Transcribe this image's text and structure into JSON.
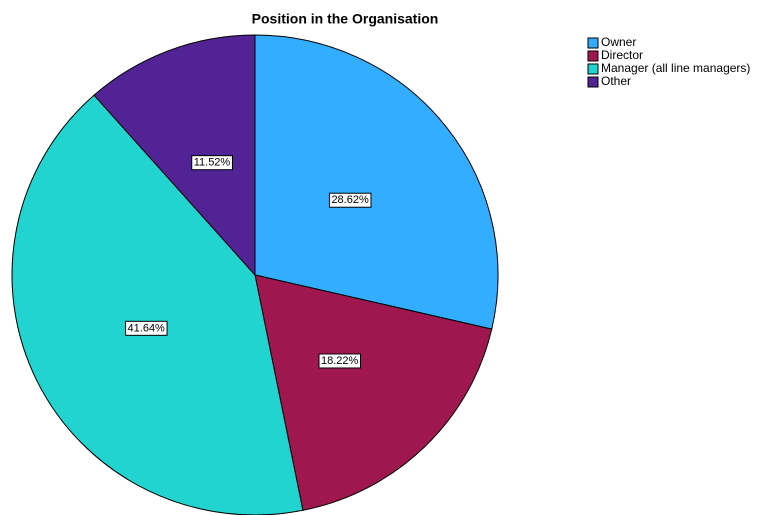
{
  "chart_data": {
    "type": "pie",
    "title": "Position in the Organisation",
    "categories": [
      "Owner",
      "Director",
      "Manager (all line managers)",
      "Other"
    ],
    "values": [
      28.62,
      18.22,
      41.64,
      11.52
    ],
    "value_labels": [
      "28.62%",
      "18.22%",
      "41.64%",
      "11.52%"
    ],
    "colors": [
      "#33adff",
      "#a0174f",
      "#21d4d0",
      "#512394"
    ],
    "legend": "top-right"
  }
}
